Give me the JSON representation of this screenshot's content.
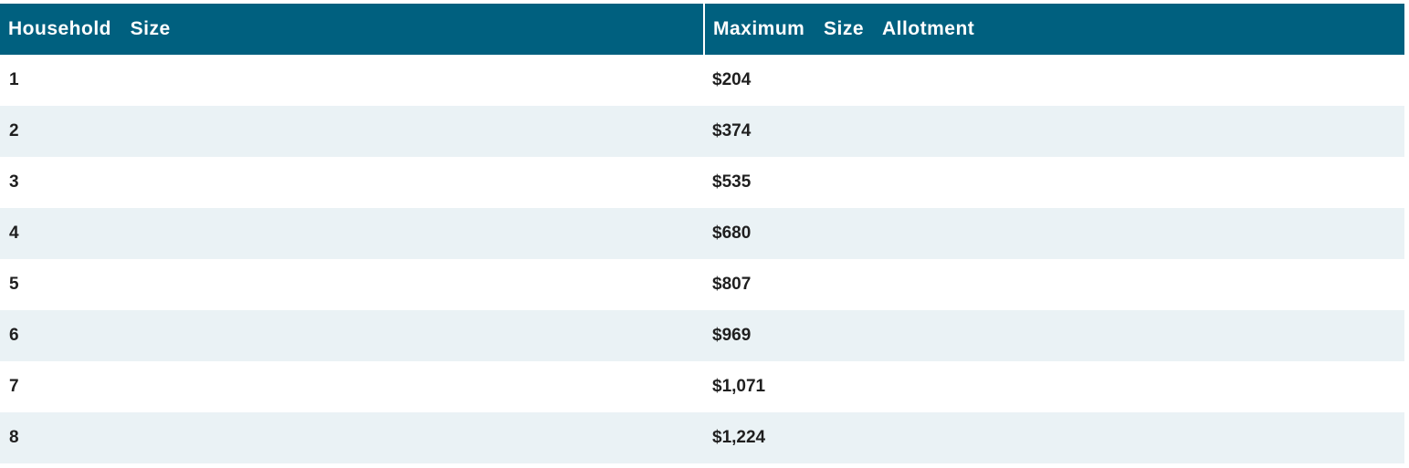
{
  "table": {
    "headers": [
      "Household  Size",
      "Maximum  Size  Allotment"
    ],
    "rows": [
      {
        "size": "1",
        "allotment": "$204"
      },
      {
        "size": "2",
        "allotment": "$374"
      },
      {
        "size": "3",
        "allotment": "$535"
      },
      {
        "size": "4",
        "allotment": "$680"
      },
      {
        "size": "5",
        "allotment": "$807"
      },
      {
        "size": "6",
        "allotment": "$969"
      },
      {
        "size": "7",
        "allotment": "$1,071"
      },
      {
        "size": "8",
        "allotment": "$1,224"
      }
    ],
    "colors": {
      "header_bg": "#00607f",
      "header_text": "#ffffff",
      "stripe_bg": "#eaf2f5",
      "row_text": "#1f1f1f"
    }
  }
}
